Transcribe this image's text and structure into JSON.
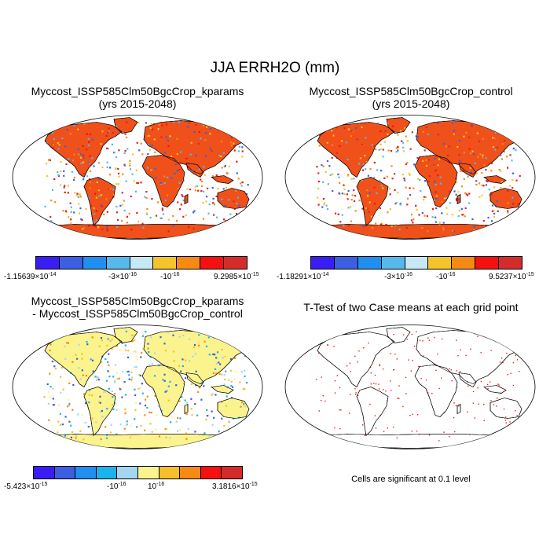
{
  "figure": {
    "title": "JJA ERRH2O (mm)",
    "palette": [
      "#3a1df5",
      "#3c5ee0",
      "#1f8ff0",
      "#56b8ec",
      "#c7e8f7",
      "#f5c42a",
      "#f78a13",
      "#f5110f",
      "#d42b2b"
    ],
    "diff_palette": [
      "#3a1df5",
      "#3c5ee0",
      "#1f8ff0",
      "#1ab4ec",
      "#a6d6ef",
      "#fbf38e",
      "#f7c02a",
      "#f78a13",
      "#f5110f",
      "#d42b2b"
    ]
  },
  "panels": {
    "top_left": {
      "title_line1": "Myccost_ISSP585Clm50BgcCrop_kparams",
      "title_line2": "(yrs 2015-2048)",
      "colorbar": {
        "min_base": "-1.15639×10",
        "min_exp": "-14",
        "mid1_base": "-3×10",
        "mid1_exp": "-16",
        "mid2_base": "-10",
        "mid2_exp": "-16",
        "max_base": "9.2985×10",
        "max_exp": "-15"
      }
    },
    "top_right": {
      "title_line1": "Myccost_ISSP585Clm50BgcCrop_control",
      "title_line2": "(yrs 2015-2048)",
      "colorbar": {
        "min_base": "-1.18291×10",
        "min_exp": "-14",
        "mid1_base": "-3×10",
        "mid1_exp": "-16",
        "mid2_base": "-10",
        "mid2_exp": "-16",
        "max_base": "9.5237×10",
        "max_exp": "-15"
      }
    },
    "bottom_left": {
      "title_line1": "Myccost_ISSP585Clm50BgcCrop_kparams",
      "title_line2": "- Myccost_ISSP585Clm50BgcCrop_control",
      "colorbar": {
        "min_base": "-5.423×10",
        "min_exp": "-15",
        "mid1_base": "-10",
        "mid1_exp": "-16",
        "mid2_base": "10",
        "mid2_exp": "-16",
        "max_base": "3.1816×10",
        "max_exp": "-15"
      }
    },
    "bottom_right": {
      "title_line1": "T-Test of two Case means at each grid point",
      "note": "Cells are significant at 0.1 level"
    }
  }
}
